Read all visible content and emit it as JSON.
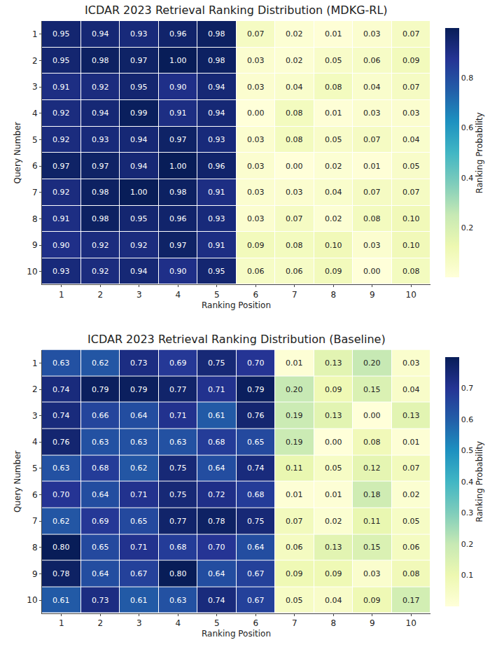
{
  "chart_data": [
    {
      "type": "heatmap",
      "title": "ICDAR 2023 Retrieval Ranking Distribution (MDKG-RL)",
      "x_label": "Ranking Position",
      "y_label": "Query Number",
      "x": [
        1,
        2,
        3,
        4,
        5,
        6,
        7,
        8,
        9,
        10
      ],
      "y": [
        1,
        2,
        3,
        4,
        5,
        6,
        7,
        8,
        9,
        10
      ],
      "xlim": [
        0.5,
        10.5
      ],
      "ylim": [
        0.5,
        10.5
      ],
      "xticks": [
        1,
        2,
        3,
        4,
        5,
        6,
        7,
        8,
        9,
        10
      ],
      "yticks": [
        1,
        2,
        3,
        4,
        5,
        6,
        7,
        8,
        9,
        10
      ],
      "z": [
        [
          0.95,
          0.94,
          0.93,
          0.96,
          0.98,
          0.07,
          0.02,
          0.01,
          0.03,
          0.07
        ],
        [
          0.95,
          0.98,
          0.97,
          1.0,
          0.98,
          0.03,
          0.02,
          0.05,
          0.06,
          0.09
        ],
        [
          0.91,
          0.92,
          0.95,
          0.9,
          0.94,
          0.03,
          0.04,
          0.08,
          0.04,
          0.07
        ],
        [
          0.92,
          0.94,
          0.99,
          0.91,
          0.94,
          0.0,
          0.08,
          0.01,
          0.03,
          0.03
        ],
        [
          0.92,
          0.93,
          0.94,
          0.97,
          0.93,
          0.03,
          0.08,
          0.05,
          0.07,
          0.04
        ],
        [
          0.97,
          0.97,
          0.94,
          1.0,
          0.96,
          0.03,
          0.0,
          0.02,
          0.01,
          0.05
        ],
        [
          0.92,
          0.98,
          1.0,
          0.98,
          0.91,
          0.03,
          0.03,
          0.04,
          0.07,
          0.07
        ],
        [
          0.91,
          0.98,
          0.95,
          0.96,
          0.93,
          0.03,
          0.07,
          0.02,
          0.08,
          0.1
        ],
        [
          0.9,
          0.92,
          0.92,
          0.97,
          0.91,
          0.09,
          0.08,
          0.1,
          0.03,
          0.1
        ],
        [
          0.93,
          0.92,
          0.94,
          0.9,
          0.95,
          0.06,
          0.06,
          0.09,
          0.0,
          0.08
        ]
      ],
      "colorbar_label": "Ranking Probability",
      "colorbar_range": [
        0,
        1
      ],
      "colorbar_ticks": [
        0.2,
        0.4,
        0.6,
        0.8
      ],
      "data_labels": true
    },
    {
      "type": "heatmap",
      "title": "ICDAR 2023 Retrieval Ranking Distribution (Baseline)",
      "x_label": "Ranking Position",
      "y_label": "Query Number",
      "x": [
        1,
        2,
        3,
        4,
        5,
        6,
        7,
        8,
        9,
        10
      ],
      "y": [
        1,
        2,
        3,
        4,
        5,
        6,
        7,
        8,
        9,
        10
      ],
      "xlim": [
        0.5,
        10.5
      ],
      "ylim": [
        0.5,
        10.5
      ],
      "xticks": [
        1,
        2,
        3,
        4,
        5,
        6,
        7,
        8,
        9,
        10
      ],
      "yticks": [
        1,
        2,
        3,
        4,
        5,
        6,
        7,
        8,
        9,
        10
      ],
      "z": [
        [
          0.63,
          0.62,
          0.73,
          0.69,
          0.75,
          0.7,
          0.01,
          0.13,
          0.2,
          0.03
        ],
        [
          0.74,
          0.79,
          0.79,
          0.77,
          0.71,
          0.79,
          0.2,
          0.09,
          0.15,
          0.04
        ],
        [
          0.74,
          0.66,
          0.64,
          0.71,
          0.61,
          0.76,
          0.19,
          0.13,
          0.0,
          0.13
        ],
        [
          0.76,
          0.63,
          0.63,
          0.63,
          0.68,
          0.65,
          0.19,
          0.0,
          0.08,
          0.01
        ],
        [
          0.63,
          0.68,
          0.62,
          0.75,
          0.64,
          0.74,
          0.11,
          0.05,
          0.12,
          0.07
        ],
        [
          0.7,
          0.64,
          0.71,
          0.75,
          0.72,
          0.68,
          0.01,
          0.01,
          0.18,
          0.02
        ],
        [
          0.62,
          0.69,
          0.65,
          0.77,
          0.78,
          0.75,
          0.07,
          0.02,
          0.11,
          0.05
        ],
        [
          0.8,
          0.65,
          0.71,
          0.68,
          0.7,
          0.64,
          0.06,
          0.13,
          0.15,
          0.06
        ],
        [
          0.78,
          0.64,
          0.67,
          0.8,
          0.64,
          0.67,
          0.09,
          0.09,
          0.03,
          0.08
        ],
        [
          0.61,
          0.73,
          0.61,
          0.63,
          0.74,
          0.67,
          0.05,
          0.04,
          0.09,
          0.17
        ]
      ],
      "colorbar_label": "Ranking Probability",
      "colorbar_range": [
        0,
        0.8
      ],
      "colorbar_ticks": [
        0.1,
        0.2,
        0.3,
        0.4,
        0.5,
        0.6,
        0.7
      ],
      "data_labels": true
    }
  ]
}
